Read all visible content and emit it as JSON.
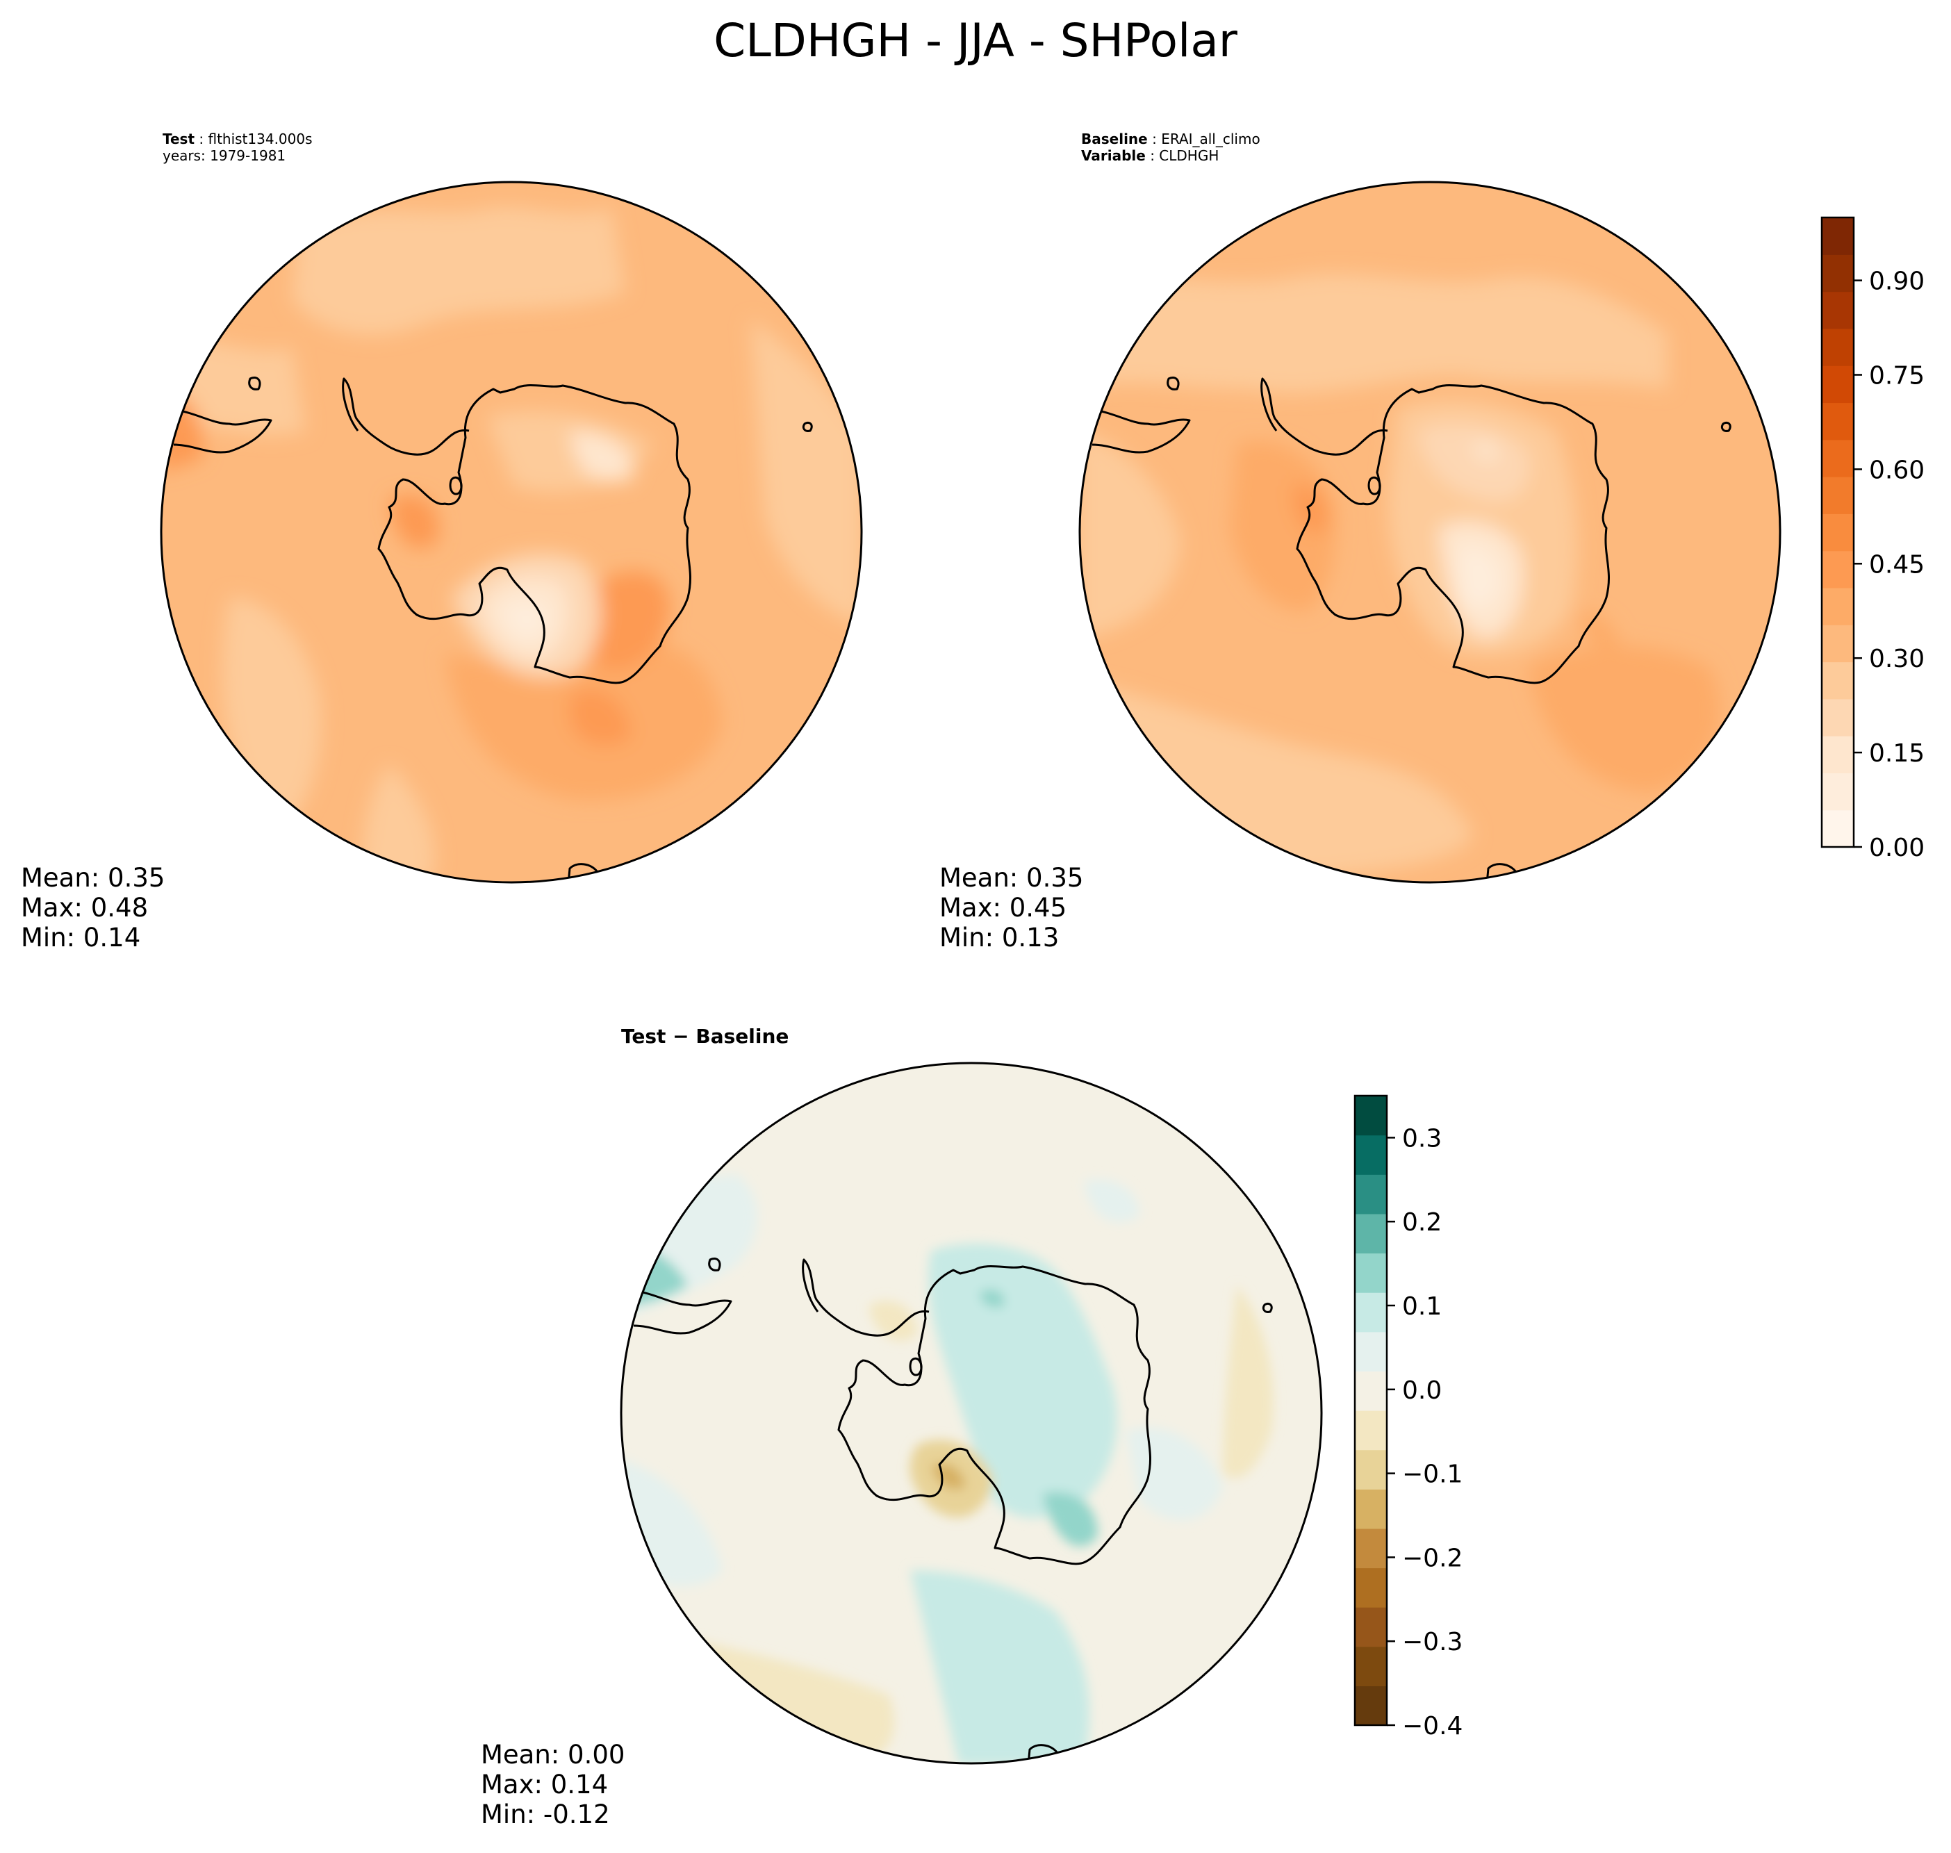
{
  "figure": {
    "title": "CLDHGH - JJA - SHPolar"
  },
  "chart_data": [
    {
      "type": "heatmap",
      "panel": "test",
      "projection": "south polar stereographic",
      "meta": {
        "label_bold": "Test",
        "label_value": "flthist134.000s",
        "years": "years: 1979-1981"
      },
      "stats": {
        "mean": "Mean:  0.35",
        "max": "Max:  0.48",
        "min": "Min:  0.14"
      },
      "colormap": "Oranges"
    },
    {
      "type": "heatmap",
      "panel": "baseline",
      "projection": "south polar stereographic",
      "meta": {
        "label_bold": "Baseline",
        "label_value": "ERAI_all_climo",
        "variable_bold": "Variable",
        "variable_value": "CLDHGH"
      },
      "stats": {
        "mean": "Mean:  0.35",
        "max": "Max:  0.45",
        "min": "Min:  0.13"
      },
      "colormap": "Oranges",
      "colorbar": {
        "range": [
          0.0,
          1.0
        ],
        "ticks": [
          0.0,
          0.15,
          0.3,
          0.45,
          0.6,
          0.75,
          0.9
        ],
        "tick_labels": [
          "0.00",
          "0.15",
          "0.30",
          "0.45",
          "0.60",
          "0.75",
          "0.90"
        ],
        "colors": [
          "#fff5eb",
          "#feeddc",
          "#fee6ce",
          "#fdd7b3",
          "#fdcb9a",
          "#fdb97d",
          "#fdab67",
          "#fd9a52",
          "#f98c3e",
          "#f27b2b",
          "#eb6b1c",
          "#e05a0e",
          "#d14905",
          "#bf4102",
          "#a83603",
          "#923002",
          "#7f2704"
        ]
      }
    },
    {
      "type": "heatmap",
      "panel": "difference",
      "title": "Test − Baseline",
      "projection": "south polar stereographic",
      "stats": {
        "mean": "Mean:  0.00",
        "max": "Max:  0.14",
        "min": "Min: -0.12"
      },
      "colormap": "BrBG",
      "colorbar": {
        "range": [
          -0.4,
          0.35
        ],
        "ticks": [
          -0.4,
          -0.3,
          -0.2,
          -0.1,
          0.0,
          0.1,
          0.2,
          0.3
        ],
        "tick_labels": [
          "−0.4",
          "−0.3",
          "−0.2",
          "−0.1",
          "0.0",
          "0.1",
          "0.2",
          "0.3"
        ],
        "colors": [
          "#653b0d",
          "#7d4a0f",
          "#96561a",
          "#ae6f21",
          "#c38a3d",
          "#d7b163",
          "#e8d398",
          "#f3e7c2",
          "#f4f1e5",
          "#e5f1ee",
          "#c7eae5",
          "#93d5ca",
          "#5eb5a8",
          "#2a8f84",
          "#076d63",
          "#014c40"
        ]
      }
    }
  ]
}
